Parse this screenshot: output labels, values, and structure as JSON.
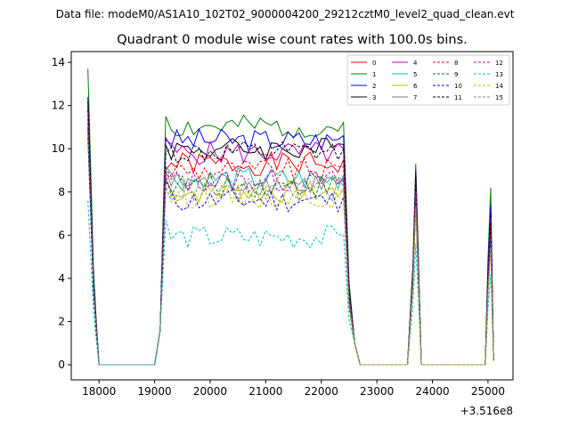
{
  "header": {
    "data_file": "Data file: modeM0/AS1A10_102T02_9000004200_29212cztM0_level2_quad_clean.evt"
  },
  "chart_data": {
    "type": "line",
    "title": "Quadrant 0 module wise count rates with 100.0s bins.",
    "xlabel": "",
    "ylabel": "",
    "x_offset_label": "+3.516e8",
    "xlim": [
      17500,
      25450
    ],
    "ylim": [
      -0.7,
      14.5
    ],
    "x_ticks": [
      18000,
      19000,
      20000,
      21000,
      22000,
      23000,
      24000,
      25000
    ],
    "y_ticks": [
      0,
      2,
      4,
      6,
      8,
      10,
      12,
      14
    ],
    "grid": false,
    "legend": {
      "placement": "top-right",
      "columns": 4
    },
    "x_dense": [
      19300,
      19400,
      19500,
      19600,
      19700,
      19800,
      19900,
      20000,
      20100,
      20200,
      20300,
      20400,
      20500,
      20600,
      20700,
      20800,
      20900,
      21000,
      21100,
      21200,
      21300,
      21400,
      21500,
      21600,
      21700,
      21800,
      21900,
      22000,
      22100,
      22200,
      22300
    ],
    "series": [
      {
        "name": "0",
        "color": "#ff0000",
        "dash": "solid",
        "peak": 12.0,
        "rise": 9.0,
        "level": 9.3,
        "spikes": [
          8.9,
          6.5
        ]
      },
      {
        "name": "1",
        "color": "#008000",
        "dash": "solid",
        "peak": 13.7,
        "rise": 11.5,
        "level": 11.0,
        "spikes": [
          9.3,
          8.2
        ]
      },
      {
        "name": "2",
        "color": "#0000ff",
        "dash": "solid",
        "peak": 12.4,
        "rise": 10.5,
        "level": 10.4,
        "spikes": [
          9.0,
          7.4
        ]
      },
      {
        "name": "3",
        "color": "#000000",
        "dash": "solid",
        "peak": 12.2,
        "rise": 10.2,
        "level": 10.0,
        "spikes": [
          8.8,
          7.0
        ]
      },
      {
        "name": "4",
        "color": "#bf00bf",
        "dash": "solid",
        "peak": 11.8,
        "rise": 10.4,
        "level": 9.8,
        "spikes": [
          8.5,
          6.8
        ]
      },
      {
        "name": "5",
        "color": "#00bfbf",
        "dash": "solid",
        "peak": 11.0,
        "rise": 9.2,
        "level": 8.6,
        "spikes": [
          7.9,
          6.0
        ]
      },
      {
        "name": "6",
        "color": "#bfbf00",
        "dash": "solid",
        "peak": 10.8,
        "rise": 8.6,
        "level": 8.0,
        "spikes": [
          7.7,
          5.8
        ]
      },
      {
        "name": "7",
        "color": "#808080",
        "dash": "solid",
        "peak": 11.2,
        "rise": 9.0,
        "level": 8.4,
        "spikes": [
          8.0,
          6.1
        ]
      },
      {
        "name": "8",
        "color": "#ff0000",
        "dash": "dashed",
        "peak": 11.4,
        "rise": 9.1,
        "level": 9.0,
        "spikes": [
          8.2,
          6.4
        ]
      },
      {
        "name": "9",
        "color": "#008000",
        "dash": "dashed",
        "peak": 10.9,
        "rise": 8.8,
        "level": 8.3,
        "spikes": [
          7.8,
          6.0
        ]
      },
      {
        "name": "10",
        "color": "#0000ff",
        "dash": "dashed",
        "peak": 10.5,
        "rise": 8.5,
        "level": 7.6,
        "spikes": [
          7.5,
          5.6
        ]
      },
      {
        "name": "11",
        "color": "#000000",
        "dash": "dashed",
        "peak": 11.8,
        "rise": 9.8,
        "level": 9.8,
        "spikes": [
          8.6,
          6.6
        ]
      },
      {
        "name": "12",
        "color": "#bf00bf",
        "dash": "dashed",
        "peak": 11.0,
        "rise": 8.9,
        "level": 8.5,
        "spikes": [
          7.9,
          6.0
        ]
      },
      {
        "name": "13",
        "color": "#00bfbf",
        "dash": "dashed",
        "peak": 7.6,
        "rise": 6.7,
        "level": 5.9,
        "spikes": [
          5.6,
          4.2
        ]
      },
      {
        "name": "14",
        "color": "#bfbf00",
        "dash": "dashed",
        "peak": 10.4,
        "rise": 8.3,
        "level": 7.8,
        "spikes": [
          7.3,
          5.4
        ]
      },
      {
        "name": "15",
        "color": "#808080",
        "dash": "dashed",
        "peak": 10.6,
        "rise": 8.2,
        "level": 8.1,
        "spikes": [
          7.4,
          5.5
        ]
      }
    ]
  }
}
